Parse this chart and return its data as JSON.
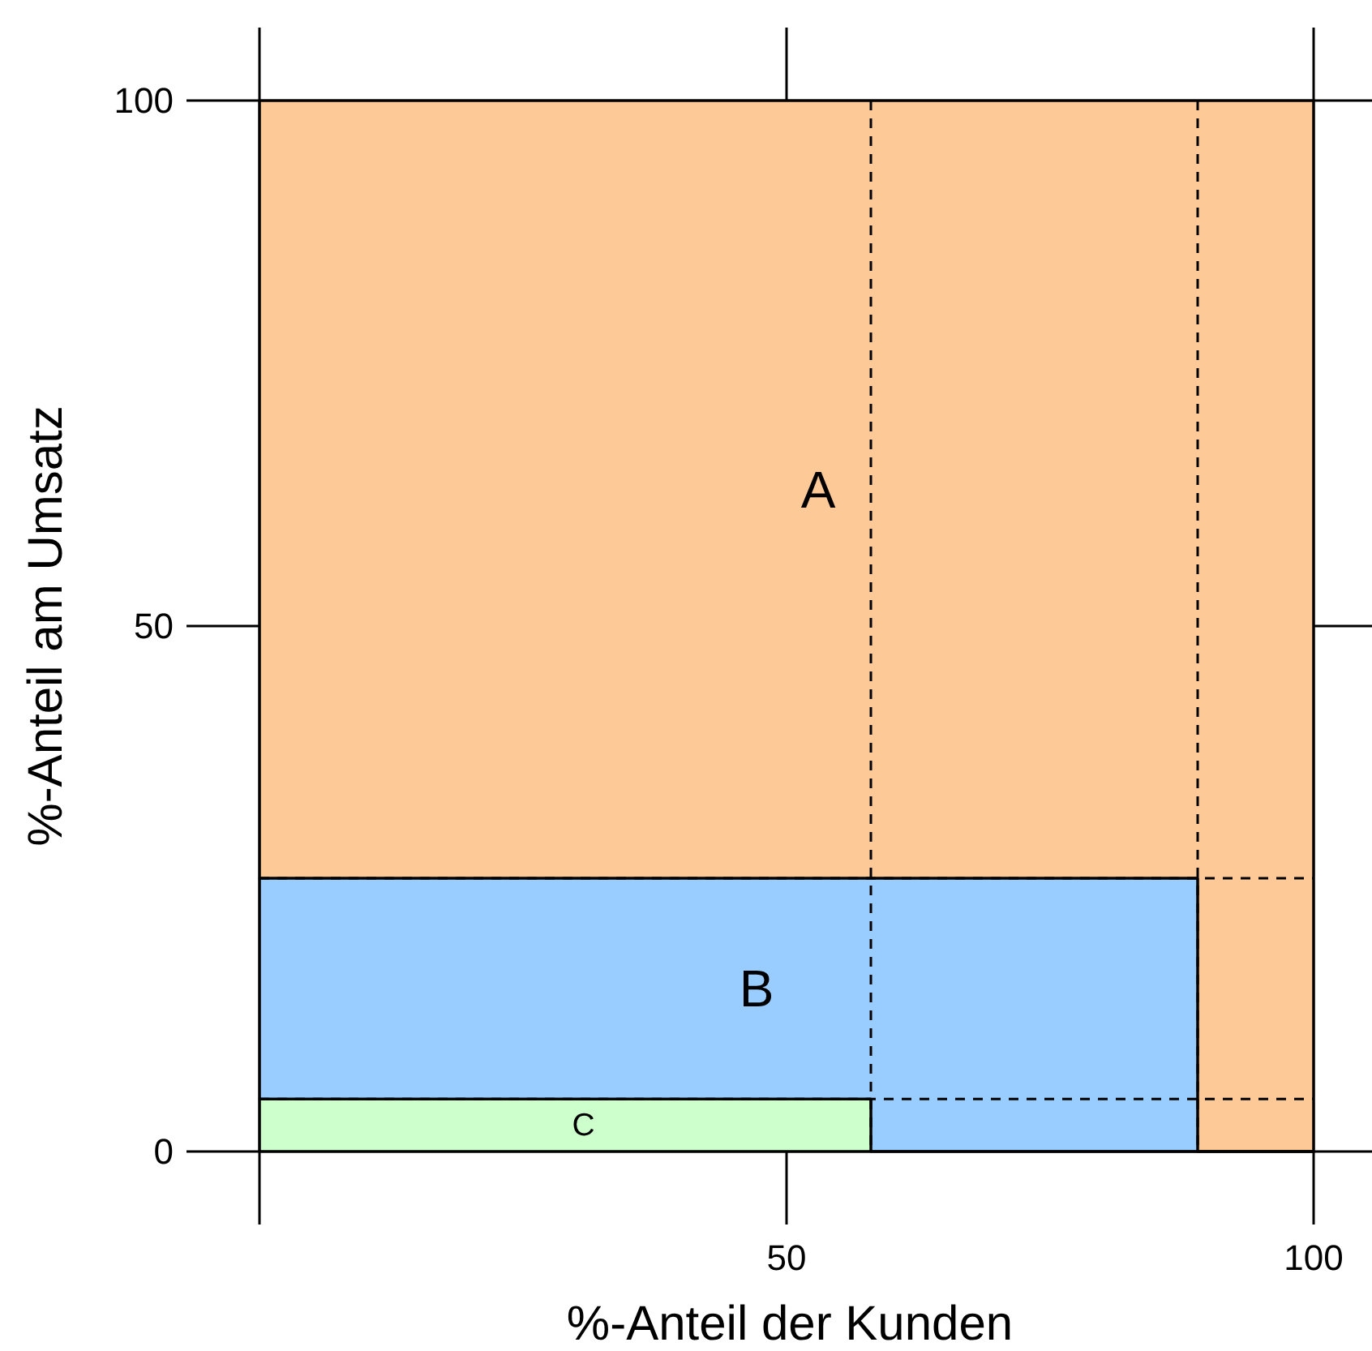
{
  "chart_data": {
    "type": "area",
    "stacked": true,
    "xlabel": "%-Anteil der Kunden",
    "ylabel": "%-Anteil am Umsatz",
    "xlim": [
      0,
      100
    ],
    "ylim": [
      0,
      100
    ],
    "xticks": [
      {
        "value": 0,
        "label": null
      },
      50,
      100
    ],
    "yticks": [
      0,
      50,
      100
    ],
    "x": [
      0,
      58,
      58,
      89,
      89,
      100
    ],
    "series": [
      {
        "name": "C",
        "color": "#ccffcc",
        "values": [
          5,
          5,
          0,
          0,
          0,
          0
        ]
      },
      {
        "name": "B",
        "color": "#99ccff",
        "values": [
          21,
          21,
          26,
          26,
          0,
          0
        ]
      },
      {
        "name": "A",
        "color": "#fdc997",
        "values": [
          74,
          74,
          74,
          74,
          100,
          100
        ]
      }
    ],
    "ref_lines": [
      {
        "axis": "x",
        "value": 58,
        "color": "#000000",
        "line_style": "dashed"
      },
      {
        "axis": "x",
        "value": 89,
        "color": "#000000",
        "line_style": "dashed"
      },
      {
        "axis": "y",
        "value": 26,
        "color": "#000000",
        "line_style": "dashed"
      },
      {
        "axis": "y",
        "value": 5,
        "color": "#000000",
        "line_style": "dashed"
      }
    ]
  }
}
